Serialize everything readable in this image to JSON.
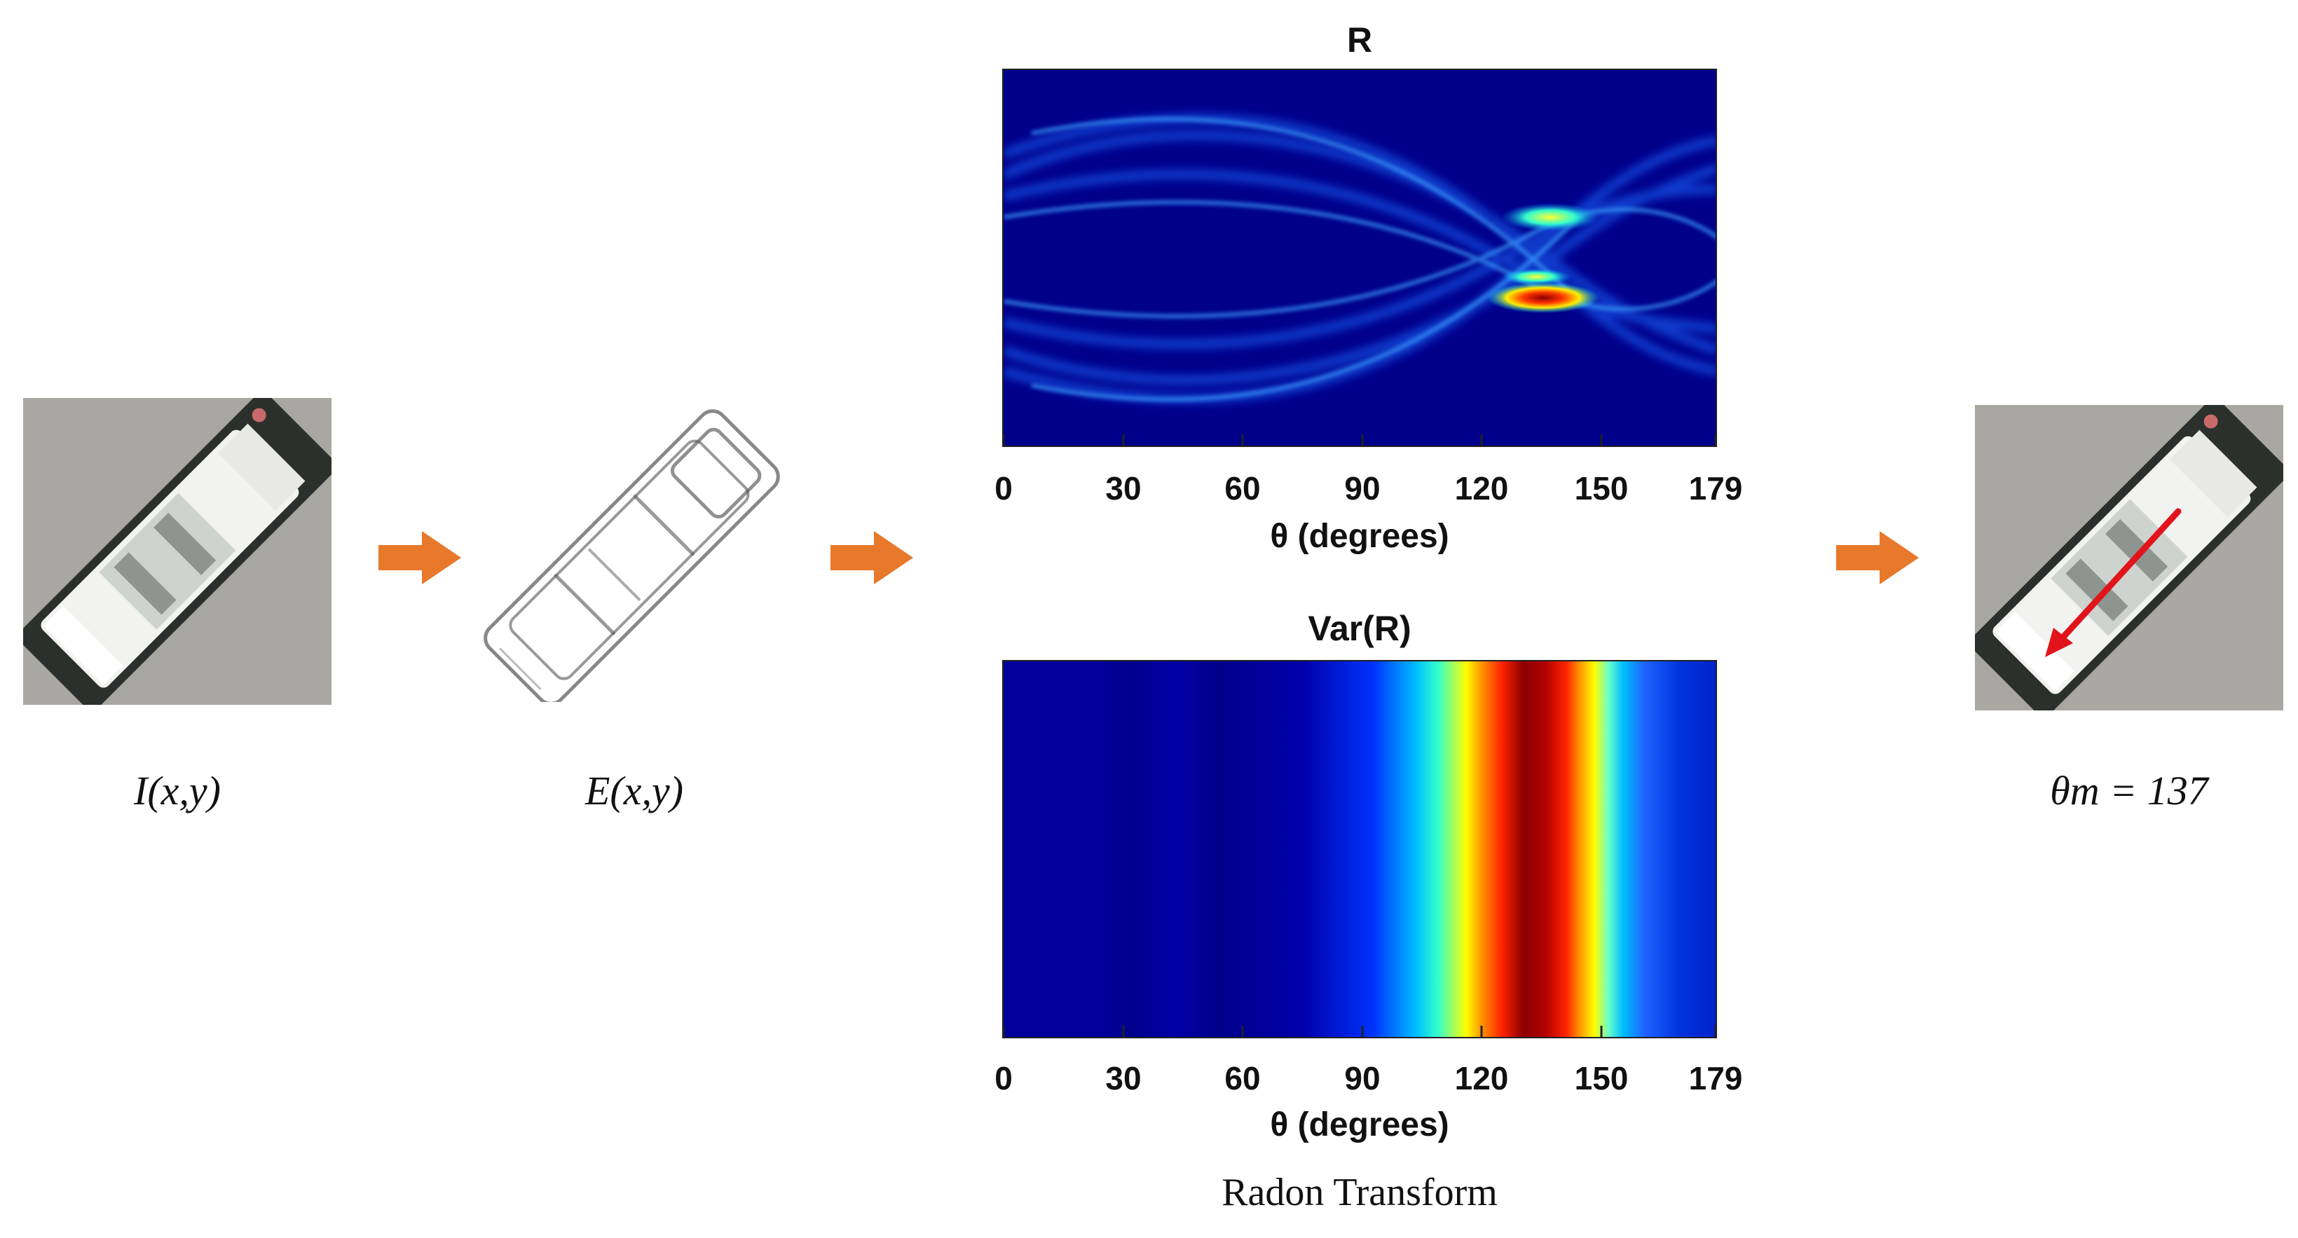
{
  "inputs": {
    "input_label": "I(x,y)",
    "edge_label": "E(x,y)"
  },
  "radon_plot": {
    "title": "R",
    "xlabel": "θ (degrees)",
    "ticks": [
      "0",
      "30",
      "60",
      "90",
      "120",
      "150",
      "179"
    ]
  },
  "variance_plot": {
    "title": "Var(R)",
    "xlabel": "θ (degrees)",
    "ticks": [
      "0",
      "30",
      "60",
      "90",
      "120",
      "150",
      "179"
    ]
  },
  "caption": "Radon Transform",
  "result": {
    "label": "θm = 137"
  },
  "chart_data": [
    {
      "type": "heatmap",
      "title": "R",
      "xlabel": "θ (degrees)",
      "xlim": [
        0,
        179
      ],
      "xticks": [
        0,
        30,
        60,
        90,
        120,
        150,
        179
      ],
      "peak_theta": 137,
      "colormap": "jet"
    },
    {
      "type": "heatmap",
      "title": "Var(R)",
      "xlabel": "θ (degrees)",
      "xlim": [
        0,
        179
      ],
      "xticks": [
        0,
        30,
        60,
        90,
        120,
        150,
        179
      ],
      "peak_theta": 137,
      "colormap": "jet"
    }
  ],
  "colors": {
    "arrow": "#e8782a",
    "direction_arrow": "#e0141a",
    "jet_low": "#00008b",
    "jet_high": "#8b0000"
  },
  "icons": {
    "flow_arrow": "right-arrow-icon"
  }
}
